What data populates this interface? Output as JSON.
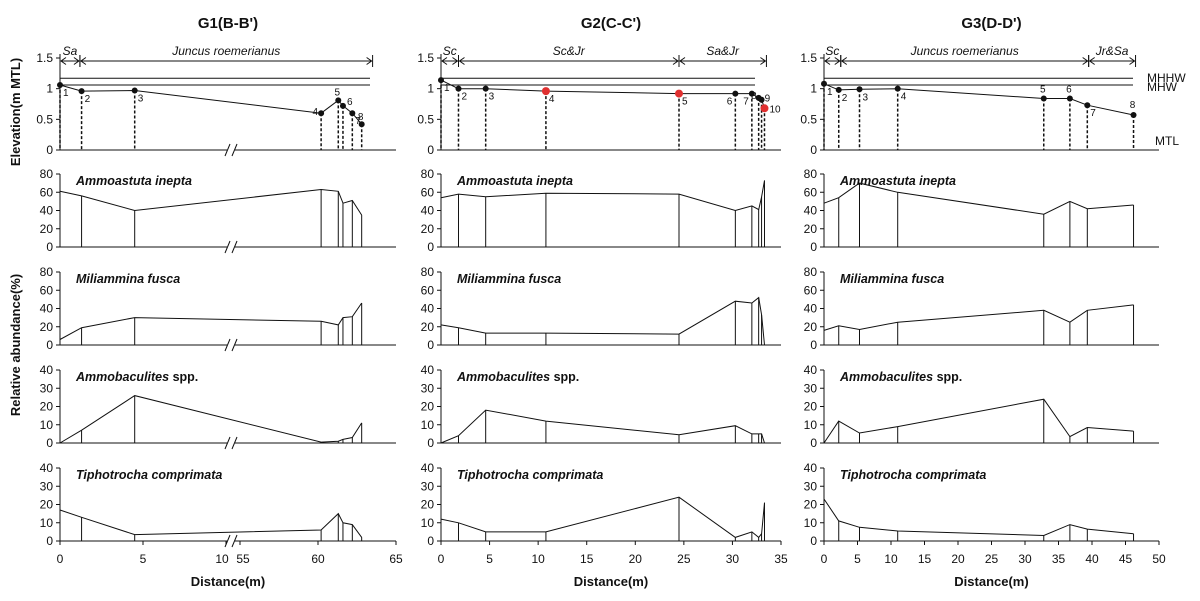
{
  "figure": {
    "y_label_elev": "Elevation(m MTL)",
    "y_label_abund": "Relative abundance(%)",
    "x_label": "Distance(m)",
    "tidal_labels": [
      "MHHW",
      "MHW",
      "MTL"
    ],
    "elev_ticks": [
      "0",
      "0.5",
      "1",
      "1.5"
    ]
  },
  "colors": {
    "line": "#111111",
    "highlight": "#e03030"
  },
  "chart_data": [
    {
      "type": "line",
      "title": "G1(B-B')",
      "x_ticks": [
        "0",
        "5",
        "10",
        "55",
        "60",
        "65"
      ],
      "x_break": "10-55",
      "zones": [
        {
          "label": "Sa",
          "from": 0,
          "to": 1.2
        },
        {
          "label": "Juncus roemerianus",
          "from": 1.2,
          "to": 63.5
        }
      ],
      "stations": [
        {
          "id": "1",
          "x": 0,
          "elev": 1.06
        },
        {
          "id": "2",
          "x": 1.3,
          "elev": 0.96
        },
        {
          "id": "3",
          "x": 4.5,
          "elev": 0.97
        },
        {
          "id": "4",
          "x": 60.2,
          "elev": 0.6
        },
        {
          "id": "5",
          "x": 61.3,
          "elev": 0.81
        },
        {
          "id": "6",
          "x": 61.6,
          "elev": 0.72
        },
        {
          "id": "7",
          "x": 62.2,
          "elev": 0.6
        },
        {
          "id": "8",
          "x": 62.8,
          "elev": 0.42
        }
      ],
      "species": [
        {
          "name": "Ammoastuta inepta",
          "ymax": 80,
          "ticks": [
            "0",
            "20",
            "40",
            "60",
            "80"
          ],
          "values": [
            61,
            56,
            40,
            63,
            61,
            48,
            51,
            35
          ]
        },
        {
          "name": "Miliammina fusca",
          "ymax": 80,
          "ticks": [
            "0",
            "20",
            "40",
            "60",
            "80"
          ],
          "values": [
            6,
            19,
            30,
            26,
            22,
            30,
            31,
            46
          ]
        },
        {
          "name": "Ammobaculites",
          "suffix": " spp.",
          "ymax": 40,
          "ticks": [
            "0",
            "10",
            "20",
            "30",
            "40"
          ],
          "values": [
            0,
            7,
            26,
            0.5,
            1,
            2,
            3,
            11
          ]
        },
        {
          "name": "Tiphotrocha comprimata",
          "ymax": 40,
          "ticks": [
            "0",
            "10",
            "20",
            "30",
            "40"
          ],
          "values": [
            17,
            13,
            3.5,
            6,
            15,
            10,
            9,
            2
          ]
        }
      ]
    },
    {
      "type": "line",
      "title": "G2(C-C')",
      "x_ticks": [
        "0",
        "5",
        "10",
        "15",
        "20",
        "25",
        "30",
        "35"
      ],
      "zones": [
        {
          "label": "Sc",
          "from": 0,
          "to": 1.8
        },
        {
          "label": "Sc&Jr",
          "from": 1.8,
          "to": 24.5
        },
        {
          "label": "Sa&Jr",
          "from": 24.5,
          "to": 33.5
        }
      ],
      "stations": [
        {
          "id": "1",
          "x": 0,
          "elev": 1.14,
          "mark": "normal"
        },
        {
          "id": "2",
          "x": 1.8,
          "elev": 1.0,
          "mark": "normal"
        },
        {
          "id": "3",
          "x": 4.6,
          "elev": 1.0,
          "mark": "normal"
        },
        {
          "id": "4",
          "x": 10.8,
          "elev": 0.96,
          "mark": "highlight"
        },
        {
          "id": "5",
          "x": 24.5,
          "elev": 0.92,
          "mark": "highlight"
        },
        {
          "id": "6",
          "x": 30.3,
          "elev": 0.92,
          "mark": "normal"
        },
        {
          "id": "7",
          "x": 32.0,
          "elev": 0.92,
          "mark": "normal"
        },
        {
          "id": "8",
          "x": 32.7,
          "elev": 0.85,
          "mark": "normal"
        },
        {
          "id": "9",
          "x": 33.0,
          "elev": 0.82,
          "mark": "normal"
        },
        {
          "id": "10",
          "x": 33.3,
          "elev": 0.68,
          "mark": "highlight"
        }
      ],
      "species": [
        {
          "name": "Ammoastuta inepta",
          "ymax": 80,
          "ticks": [
            "0",
            "20",
            "40",
            "60",
            "80"
          ],
          "values": [
            54,
            58,
            55,
            59,
            58,
            40,
            45,
            41,
            55,
            73
          ]
        },
        {
          "name": "Miliammina fusca",
          "ymax": 80,
          "ticks": [
            "0",
            "20",
            "40",
            "60",
            "80"
          ],
          "values": [
            22,
            19,
            13,
            13,
            12,
            48,
            46,
            52,
            33,
            0
          ]
        },
        {
          "name": "Ammobaculites",
          "suffix": " spp.",
          "ymax": 40,
          "ticks": [
            "0",
            "10",
            "20",
            "30",
            "40"
          ],
          "values": [
            0,
            4,
            18,
            12,
            4.5,
            9.5,
            5,
            5,
            5,
            0
          ]
        },
        {
          "name": "Tiphotrocha comprimata",
          "ymax": 40,
          "ticks": [
            "0",
            "10",
            "20",
            "30",
            "40"
          ],
          "values": [
            12,
            10,
            5,
            5,
            24,
            2,
            5,
            2,
            4,
            21
          ]
        }
      ]
    },
    {
      "type": "line",
      "title": "G3(D-D')",
      "x_ticks": [
        "0",
        "5",
        "10",
        "15",
        "20",
        "25",
        "30",
        "35",
        "40",
        "45",
        "50"
      ],
      "zones": [
        {
          "label": "Sc",
          "from": 0,
          "to": 2.5
        },
        {
          "label": "Juncus roemerianus",
          "from": 2.5,
          "to": 39.5
        },
        {
          "label": "Jr&Sa",
          "from": 39.5,
          "to": 46.5
        }
      ],
      "stations": [
        {
          "id": "1",
          "x": 0,
          "elev": 1.08
        },
        {
          "id": "2",
          "x": 2.2,
          "elev": 0.98
        },
        {
          "id": "3",
          "x": 5.3,
          "elev": 0.99
        },
        {
          "id": "4",
          "x": 11.0,
          "elev": 1.0
        },
        {
          "id": "5",
          "x": 32.8,
          "elev": 0.84
        },
        {
          "id": "6",
          "x": 36.7,
          "elev": 0.84
        },
        {
          "id": "7",
          "x": 39.3,
          "elev": 0.73
        },
        {
          "id": "8",
          "x": 46.2,
          "elev": 0.57
        }
      ],
      "species": [
        {
          "name": "Ammoastuta inepta",
          "ymax": 80,
          "ticks": [
            "0",
            "20",
            "40",
            "60",
            "80"
          ],
          "values": [
            48,
            54,
            70,
            60,
            36,
            50,
            42,
            46
          ]
        },
        {
          "name": "Miliammina fusca",
          "ymax": 80,
          "ticks": [
            "0",
            "20",
            "40",
            "60",
            "80"
          ],
          "values": [
            16,
            21,
            17,
            25,
            38,
            25,
            38,
            44
          ]
        },
        {
          "name": "Ammobaculites",
          "suffix": " spp.",
          "ymax": 40,
          "ticks": [
            "0",
            "10",
            "20",
            "30",
            "40"
          ],
          "values": [
            0,
            12,
            5.5,
            9,
            24,
            3.5,
            8.5,
            6.5
          ]
        },
        {
          "name": "Tiphotrocha comprimata",
          "ymax": 40,
          "ticks": [
            "0",
            "10",
            "20",
            "30",
            "40"
          ],
          "values": [
            23,
            11,
            7.5,
            5.5,
            3,
            9,
            6.5,
            4
          ]
        }
      ]
    }
  ]
}
